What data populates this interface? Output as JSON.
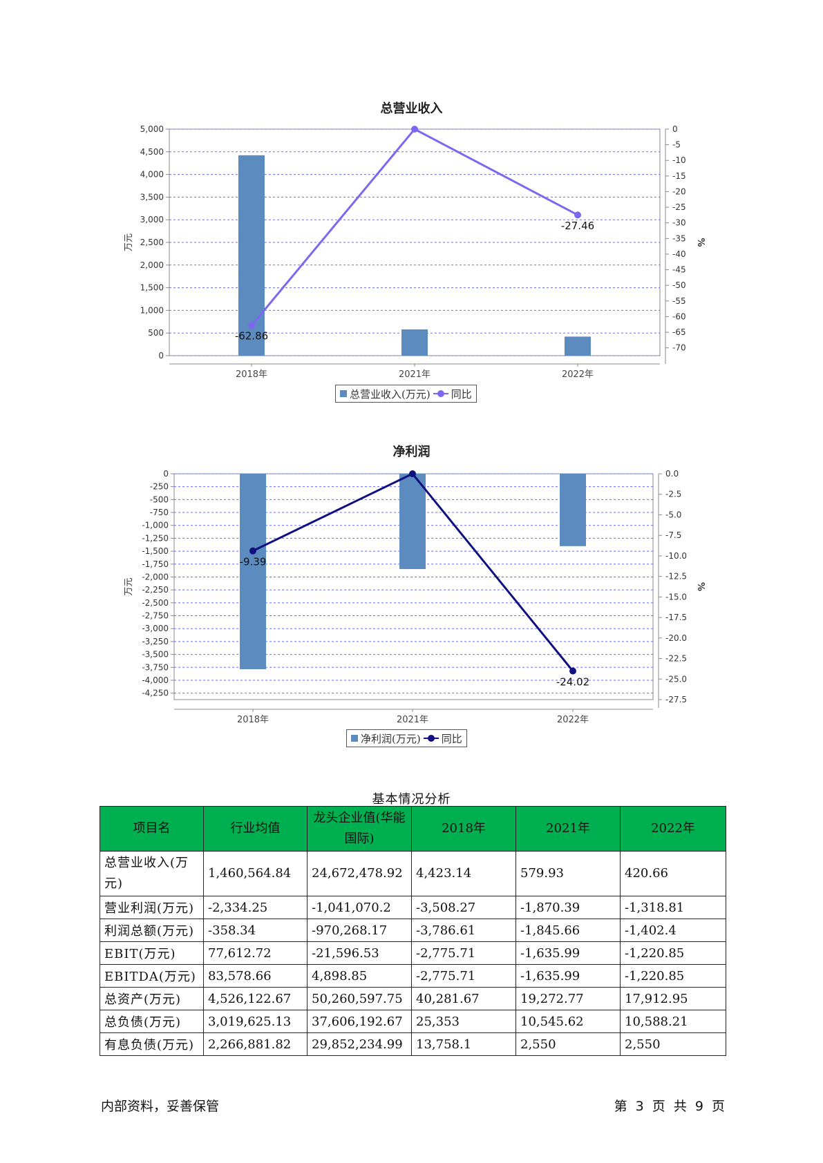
{
  "charts": [
    {
      "title": "总营业收入",
      "type": "bar",
      "ylabel": "万元",
      "y2label": "%",
      "categories": [
        "2018年",
        "2021年",
        "2022年"
      ],
      "series": [
        {
          "name": "总营业收入(万元)",
          "type": "bar",
          "axis": "left",
          "values": [
            4423.14,
            579.93,
            420.66
          ]
        },
        {
          "name": "同比",
          "type": "line",
          "axis": "right",
          "values": [
            -62.86,
            0,
            -27.46
          ],
          "labels": [
            "-62.86",
            "",
            "-27.46"
          ]
        }
      ],
      "ylim": [
        0,
        5000
      ],
      "yticks": [
        0,
        500,
        1000,
        1500,
        2000,
        2500,
        3000,
        3500,
        4000,
        4500,
        5000
      ],
      "ytick_labels": [
        "0",
        "500",
        "1,000",
        "1,500",
        "2,000",
        "2,500",
        "3,000",
        "3,500",
        "4,000",
        "4,500",
        "5,000"
      ],
      "y2lim": [
        -72.5,
        0
      ],
      "y2ticks": [
        0,
        -5,
        -10,
        -15,
        -20,
        -25,
        -30,
        -35,
        -40,
        -45,
        -50,
        -55,
        -60,
        -65,
        -70
      ],
      "y2tick_labels": [
        "0",
        "-5",
        "-10",
        "-15",
        "-20",
        "-25",
        "-30",
        "-35",
        "-40",
        "-45",
        "-50",
        "-55",
        "-60",
        "-65",
        "-70"
      ],
      "colors": {
        "bar": "#5b8bbf",
        "line": "#7b68ee",
        "grid": "#6a6af0"
      },
      "legend": "bottom-center",
      "grid": true
    },
    {
      "title": "净利润",
      "type": "bar",
      "ylabel": "万元",
      "y2label": "%",
      "categories": [
        "2018年",
        "2021年",
        "2022年"
      ],
      "series": [
        {
          "name": "净利润(万元)",
          "type": "bar",
          "axis": "left",
          "values": [
            -3786.61,
            -1845.66,
            -1402.4
          ]
        },
        {
          "name": "同比",
          "type": "line",
          "axis": "right",
          "values": [
            -9.39,
            0,
            -24.02
          ],
          "labels": [
            "-9.39",
            "",
            "-24.02"
          ]
        }
      ],
      "ylim": [
        -4375,
        0
      ],
      "yticks": [
        0,
        -250,
        -500,
        -750,
        -1000,
        -1250,
        -1500,
        -1750,
        -2000,
        -2250,
        -2500,
        -2750,
        -3000,
        -3250,
        -3500,
        -3750,
        -4000,
        -4250
      ],
      "ytick_labels": [
        "0",
        "-250",
        "-500",
        "-750",
        "-1,000",
        "-1,250",
        "-1,500",
        "-1,750",
        "-2,000",
        "-2,250",
        "-2,500",
        "-2,750",
        "-3,000",
        "-3,250",
        "-3,500",
        "-3,750",
        "-4,000",
        "-4,250"
      ],
      "y2lim": [
        -27.5,
        0
      ],
      "y2ticks": [
        0,
        -2.5,
        -5,
        -7.5,
        -10,
        -12.5,
        -15,
        -17.5,
        -20,
        -22.5,
        -25,
        -27.5
      ],
      "y2tick_labels": [
        "0.0",
        "-2.5",
        "-5.0",
        "-7.5",
        "-10.0",
        "-12.5",
        "-15.0",
        "-17.5",
        "-20.0",
        "-22.5",
        "-25.0",
        "-27.5"
      ],
      "colors": {
        "bar": "#5b8bbf",
        "line": "#101080",
        "grid": "#6a6af0"
      },
      "legend": "bottom-center",
      "grid": true
    }
  ],
  "table": {
    "caption": "基本情况分析",
    "headers": [
      "项目名",
      "行业均值",
      "龙头企业值(华能国际)",
      "2018年",
      "2021年",
      "2022年"
    ],
    "rows": [
      [
        "总营业收入(万元)",
        "1,460,564.84",
        "24,672,478.92",
        "4,423.14",
        "579.93",
        "420.66"
      ],
      [
        "营业利润(万元)",
        "-2,334.25",
        "-1,041,070.2",
        "-3,508.27",
        "-1,870.39",
        "-1,318.81"
      ],
      [
        "利润总额(万元)",
        "-358.34",
        "-970,268.17",
        "-3,786.61",
        "-1,845.66",
        "-1,402.4"
      ],
      [
        "EBIT(万元)",
        "77,612.72",
        "-21,596.53",
        "-2,775.71",
        "-1,635.99",
        "-1,220.85"
      ],
      [
        "EBITDA(万元)",
        "83,578.66",
        "4,898.85",
        "-2,775.71",
        "-1,635.99",
        "-1,220.85"
      ],
      [
        "总资产(万元)",
        "4,526,122.67",
        "50,260,597.75",
        "40,281.67",
        "19,272.77",
        "17,912.95"
      ],
      [
        "总负债(万元)",
        "3,019,625.13",
        "37,606,192.67",
        "25,353",
        "10,545.62",
        "10,588.21"
      ],
      [
        "有息负债(万元)",
        "2,266,881.82",
        "29,852,234.99",
        "13,758.1",
        "2,550",
        "2,550"
      ]
    ]
  },
  "footer": {
    "left": "内部资料，妥善保管",
    "right": "第 3 页  共 9 页"
  }
}
